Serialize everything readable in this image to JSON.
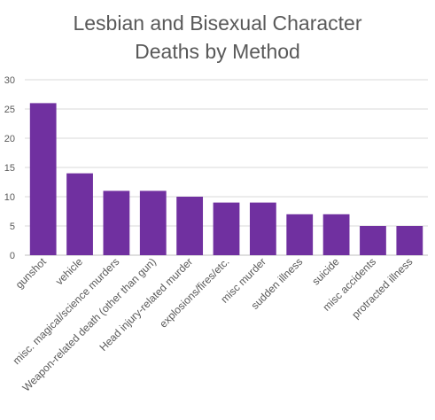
{
  "chart_data": {
    "type": "bar",
    "title_lines": [
      "Lesbian and Bisexual Character",
      "Deaths by Method"
    ],
    "xlabel": "",
    "ylabel": "",
    "ylim": [
      0,
      30
    ],
    "yticks": [
      0,
      5,
      10,
      15,
      20,
      25,
      30
    ],
    "grid": true,
    "legend": "none",
    "bar_color": "#7030a0",
    "categories": [
      "gunshot",
      "vehicle",
      "misc. magical/science murders",
      "Weapon-related death (other than gun)",
      "Head injury-related murder",
      "explosions/fires/etc.",
      "misc murder",
      "sudden illness",
      "suicide",
      "misc accidents",
      "protracted illness"
    ],
    "values": [
      26,
      14,
      11,
      11,
      10,
      9,
      9,
      7,
      7,
      5,
      5
    ]
  }
}
